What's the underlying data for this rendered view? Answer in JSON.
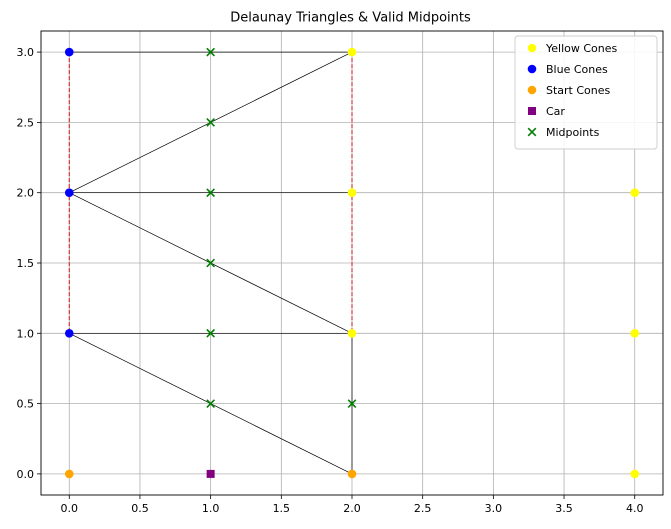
{
  "chart_data": {
    "type": "scatter",
    "title": "Delaunay Triangles & Valid Midpoints",
    "xlabel": "",
    "ylabel": "",
    "xlim": [
      -0.2,
      4.2
    ],
    "ylim": [
      -0.15,
      3.15
    ],
    "xticks": [
      0.0,
      0.5,
      1.0,
      1.5,
      2.0,
      2.5,
      3.0,
      3.5,
      4.0
    ],
    "xtick_labels": [
      "0.0",
      "0.5",
      "1.0",
      "1.5",
      "2.0",
      "2.5",
      "3.0",
      "3.5",
      "4.0"
    ],
    "yticks": [
      0.0,
      0.5,
      1.0,
      1.5,
      2.0,
      2.5,
      3.0
    ],
    "ytick_labels": [
      "0.0",
      "0.5",
      "1.0",
      "1.5",
      "2.0",
      "2.5",
      "3.0"
    ],
    "grid": true,
    "legend_position": "top-right",
    "series": [
      {
        "name": "Yellow Cones",
        "marker": "circle",
        "color": "#ffff00",
        "points": [
          [
            2,
            3
          ],
          [
            2,
            2
          ],
          [
            2,
            1
          ],
          [
            4,
            2
          ],
          [
            4,
            1
          ],
          [
            4,
            0
          ]
        ]
      },
      {
        "name": "Blue Cones",
        "marker": "circle",
        "color": "#0000ff",
        "points": [
          [
            0,
            3
          ],
          [
            0,
            2
          ],
          [
            0,
            1
          ]
        ]
      },
      {
        "name": "Start Cones",
        "marker": "circle",
        "color": "#ffa500",
        "points": [
          [
            0,
            0
          ],
          [
            2,
            0
          ]
        ]
      },
      {
        "name": "Car",
        "marker": "square",
        "color": "#800080",
        "points": [
          [
            1,
            0
          ]
        ]
      },
      {
        "name": "Midpoints",
        "marker": "x",
        "color": "#008000",
        "points": [
          [
            1,
            3
          ],
          [
            1,
            2.5
          ],
          [
            1,
            2
          ],
          [
            1,
            1.5
          ],
          [
            1,
            1
          ],
          [
            1,
            0.5
          ],
          [
            2,
            0.5
          ]
        ]
      }
    ],
    "triangle_edges": {
      "color": "#000000",
      "segments": [
        [
          [
            0,
            3
          ],
          [
            2,
            3
          ]
        ],
        [
          [
            0,
            2
          ],
          [
            2,
            3
          ]
        ],
        [
          [
            0,
            2
          ],
          [
            2,
            2
          ]
        ],
        [
          [
            0,
            2
          ],
          [
            2,
            1
          ]
        ],
        [
          [
            0,
            1
          ],
          [
            2,
            1
          ]
        ],
        [
          [
            0,
            1
          ],
          [
            2,
            0
          ]
        ],
        [
          [
            2,
            1
          ],
          [
            2,
            0
          ]
        ]
      ]
    },
    "boundary_lines": {
      "color": "#d62728",
      "style": "dashed",
      "segments": [
        [
          [
            0,
            3
          ],
          [
            0,
            1
          ]
        ],
        [
          [
            2,
            3
          ],
          [
            2,
            1
          ]
        ]
      ]
    }
  }
}
